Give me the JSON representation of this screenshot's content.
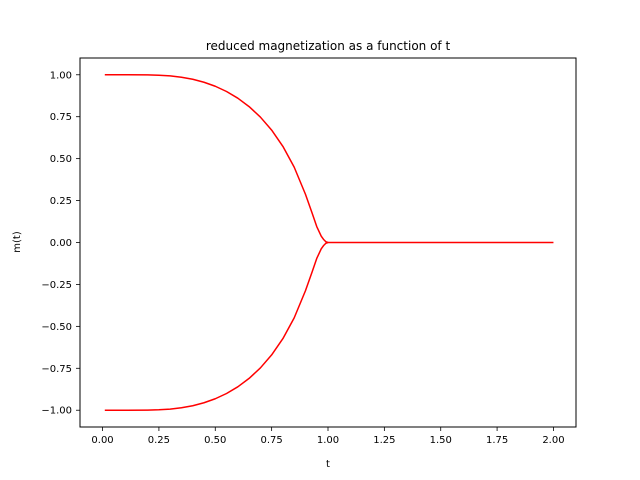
{
  "chart_data": {
    "type": "line",
    "title": "reduced magnetization as a function of t",
    "xlabel": "t",
    "ylabel": "m(t)",
    "xlim": [
      -0.1,
      2.1
    ],
    "ylim": [
      -1.1,
      1.1
    ],
    "xticks": [
      0.0,
      0.25,
      0.5,
      0.75,
      1.0,
      1.25,
      1.5,
      1.75,
      2.0
    ],
    "xtick_labels": [
      "0.00",
      "0.25",
      "0.50",
      "0.75",
      "1.00",
      "1.25",
      "1.50",
      "1.75",
      "2.00"
    ],
    "yticks": [
      1.0,
      0.75,
      0.5,
      0.25,
      0.0,
      -0.25,
      -0.5,
      -0.75,
      -1.0
    ],
    "ytick_labels": [
      "1.00",
      "0.75",
      "0.50",
      "0.25",
      "0.00",
      "−0.25",
      "−0.50",
      "−0.75",
      "−1.00"
    ],
    "grid": false,
    "series": [
      {
        "color": "#ff0000",
        "x": [
          0.01,
          0.1,
          0.2,
          0.25,
          0.3,
          0.35,
          0.4,
          0.45,
          0.5,
          0.55,
          0.6,
          0.65,
          0.7,
          0.75,
          0.8,
          0.85,
          0.9,
          0.93,
          0.95,
          0.97,
          0.98,
          0.99,
          1.0
        ],
        "y": [
          1.0,
          1.0,
          0.9993,
          0.9975,
          0.9931,
          0.9853,
          0.9731,
          0.9555,
          0.9316,
          0.9003,
          0.8604,
          0.8103,
          0.7479,
          0.6702,
          0.5729,
          0.4494,
          0.2876,
          0.1734,
          0.0952,
          0.0378,
          0.0188,
          0.0051,
          0.0
        ]
      },
      {
        "color": "#ff0000",
        "x": [
          0.01,
          0.1,
          0.2,
          0.25,
          0.3,
          0.35,
          0.4,
          0.45,
          0.5,
          0.55,
          0.6,
          0.65,
          0.7,
          0.75,
          0.8,
          0.85,
          0.9,
          0.93,
          0.95,
          0.97,
          0.98,
          0.99,
          1.0
        ],
        "y": [
          -1.0,
          -1.0,
          -0.9993,
          -0.9975,
          -0.9931,
          -0.9853,
          -0.9731,
          -0.9555,
          -0.9316,
          -0.9003,
          -0.8604,
          -0.8103,
          -0.7479,
          -0.6702,
          -0.5729,
          -0.4494,
          -0.2876,
          -0.1734,
          -0.0952,
          -0.0378,
          -0.0188,
          -0.0051,
          0.0
        ]
      },
      {
        "color": "#ff0000",
        "x": [
          1.0,
          2.0
        ],
        "y": [
          0.0,
          0.0
        ]
      }
    ]
  }
}
